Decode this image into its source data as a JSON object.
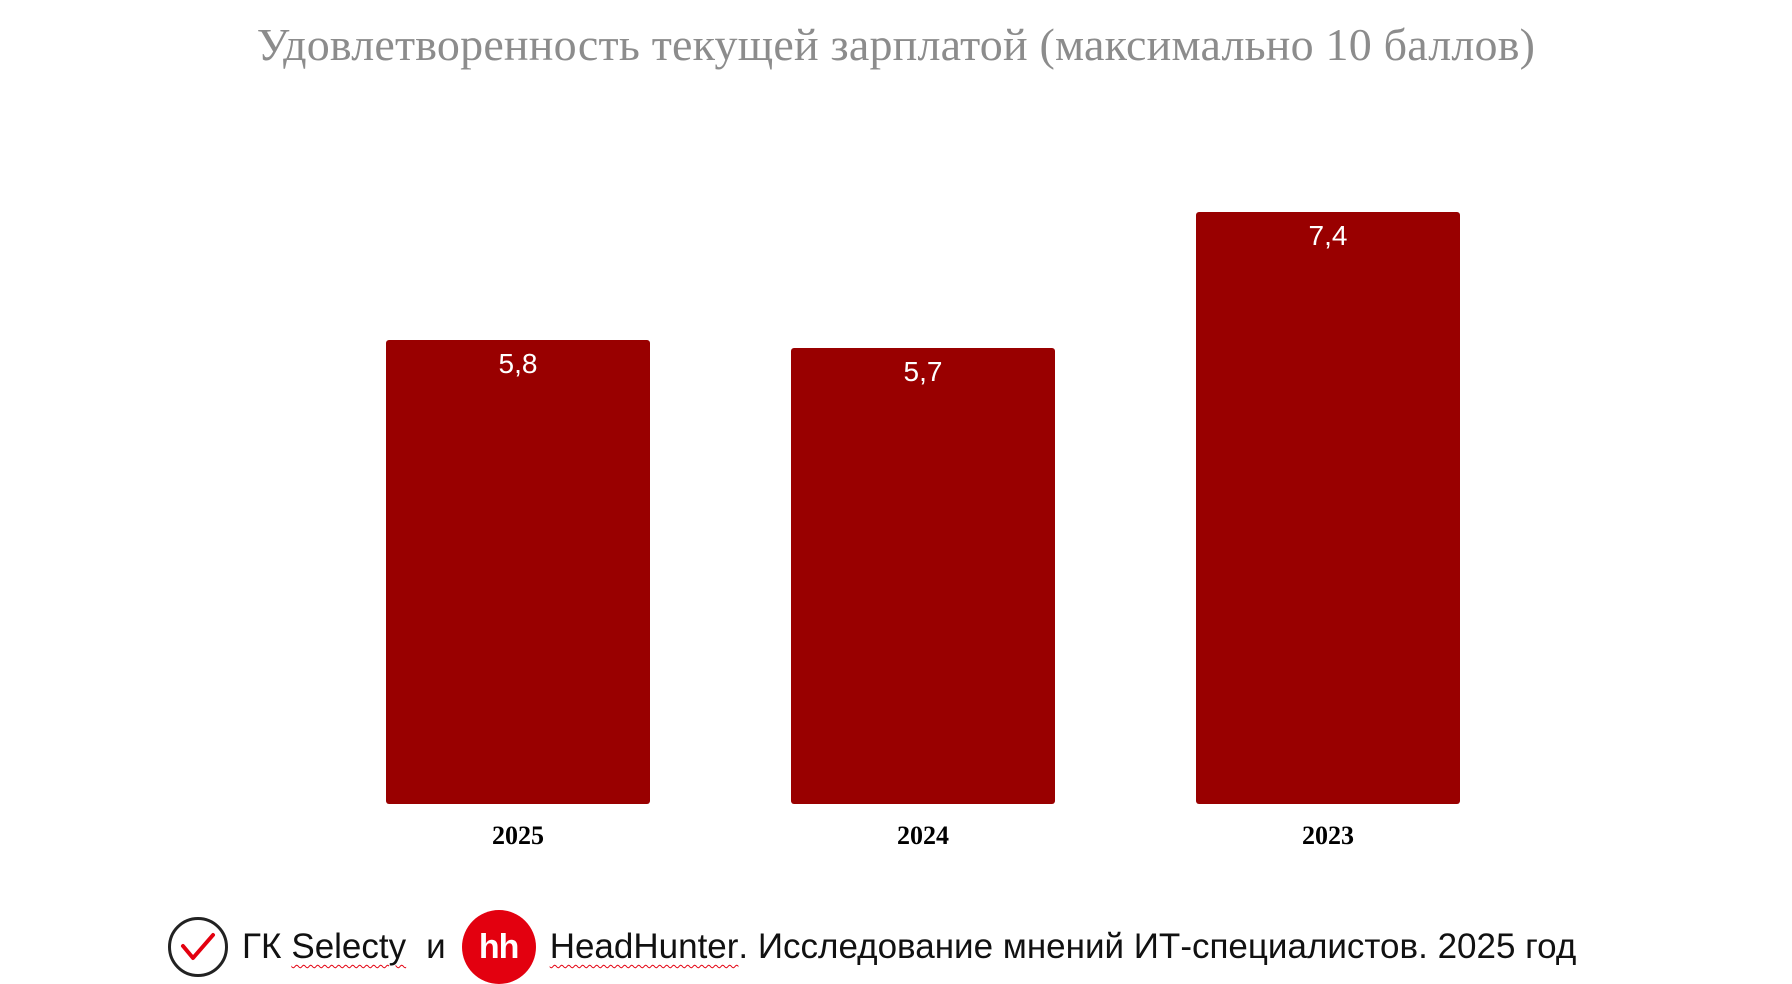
{
  "chart_data": {
    "type": "bar",
    "title": "Удовлетворенность текущей зарплатой (максимально 10 баллов)",
    "categories": [
      "2025",
      "2024",
      "2023"
    ],
    "values": [
      5.8,
      5.7,
      7.4
    ],
    "value_labels": [
      "5,8",
      "5,7",
      "7,4"
    ],
    "xlabel": "",
    "ylabel": "",
    "ylim": [
      0,
      10
    ],
    "grid": false,
    "legend": "none",
    "bar_color": "#990000"
  },
  "footer": {
    "prefix": "ГК",
    "selecty": "Selecty",
    "conjunction": "и",
    "hh_logo_text": "hh",
    "headhunter": "HeadHunter",
    "rest": ". Исследование мнений ИТ-специалистов. 2025 год"
  },
  "icons": {
    "selecty_logo": "red-check-in-circle-icon",
    "hh_logo": "hh-red-circle-logo"
  }
}
